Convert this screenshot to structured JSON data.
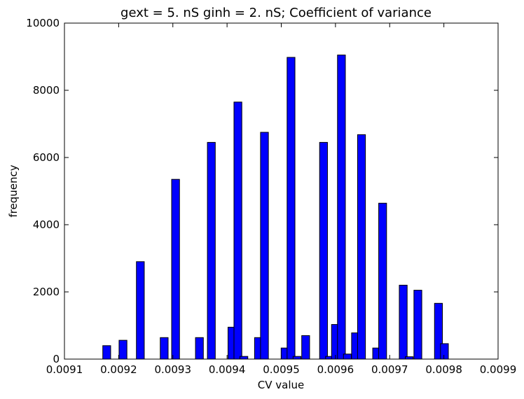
{
  "chart_data": {
    "type": "bar",
    "title": "gext = 5. nS ginh = 2. nS; Coefficient of variance",
    "xlabel": "CV value",
    "ylabel": "frequency",
    "xlim": [
      0.0091,
      0.0099
    ],
    "ylim": [
      0,
      10000
    ],
    "xticks": [
      "0.0091",
      "0.0092",
      "0.0093",
      "0.0094",
      "0.0095",
      "0.0096",
      "0.0097",
      "0.0098",
      "0.0099"
    ],
    "yticks": [
      "0",
      "2000",
      "4000",
      "6000",
      "8000",
      "10000"
    ],
    "bar_width": 1.45e-05,
    "bar_color": "#0000ff",
    "grid": false,
    "bars": [
      {
        "x": 0.009178,
        "y": 400
      },
      {
        "x": 0.009208,
        "y": 560
      },
      {
        "x": 0.00924,
        "y": 2900
      },
      {
        "x": 0.009284,
        "y": 640
      },
      {
        "x": 0.009305,
        "y": 5350
      },
      {
        "x": 0.009349,
        "y": 640
      },
      {
        "x": 0.009371,
        "y": 6450
      },
      {
        "x": 0.009409,
        "y": 950
      },
      {
        "x": 0.00942,
        "y": 7650
      },
      {
        "x": 0.009431,
        "y": 80
      },
      {
        "x": 0.009458,
        "y": 640
      },
      {
        "x": 0.009469,
        "y": 6750
      },
      {
        "x": 0.009507,
        "y": 330
      },
      {
        "x": 0.009518,
        "y": 8980
      },
      {
        "x": 0.009529,
        "y": 80
      },
      {
        "x": 0.009545,
        "y": 700
      },
      {
        "x": 0.009578,
        "y": 6450
      },
      {
        "x": 0.009589,
        "y": 80
      },
      {
        "x": 0.0096,
        "y": 1030
      },
      {
        "x": 0.009611,
        "y": 9050
      },
      {
        "x": 0.009622,
        "y": 150
      },
      {
        "x": 0.009637,
        "y": 780
      },
      {
        "x": 0.009648,
        "y": 6680
      },
      {
        "x": 0.009676,
        "y": 330
      },
      {
        "x": 0.009687,
        "y": 4640
      },
      {
        "x": 0.009725,
        "y": 2200
      },
      {
        "x": 0.009736,
        "y": 70
      },
      {
        "x": 0.009752,
        "y": 2050
      },
      {
        "x": 0.00979,
        "y": 1660
      },
      {
        "x": 0.009801,
        "y": 460
      }
    ]
  }
}
